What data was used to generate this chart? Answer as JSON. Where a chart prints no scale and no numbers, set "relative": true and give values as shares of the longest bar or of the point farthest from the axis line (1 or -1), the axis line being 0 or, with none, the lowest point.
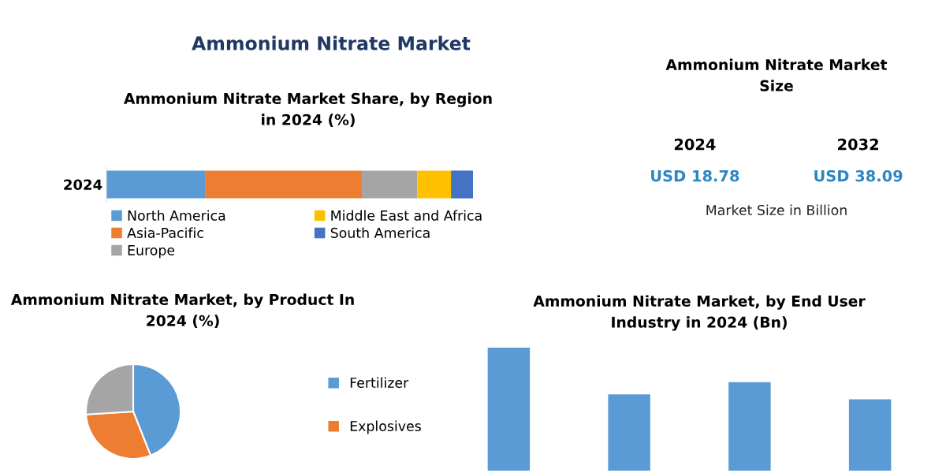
{
  "chart_data": [
    {
      "type": "bar",
      "title": "Ammonium Nitrate Market",
      "subtitle": "Ammonium Nitrate Market Share, by Region\nin 2024 (%)",
      "orientation": "horizontal",
      "stacked": true,
      "relative": true,
      "legend": "bottom",
      "categories": [
        "2024"
      ],
      "series": [
        {
          "name": "North America",
          "color": "#5b9bd5",
          "values": [
            0.269
          ]
        },
        {
          "name": "Asia-Pacific",
          "color": "#ed7d31",
          "values": [
            0.428
          ]
        },
        {
          "name": "Europe",
          "color": "#a5a5a5",
          "values": [
            0.151
          ]
        },
        {
          "name": "Middle East and Africa",
          "color": "#ffc000",
          "values": [
            0.092
          ]
        },
        {
          "name": "South America",
          "color": "#4472c4",
          "values": [
            0.06
          ]
        }
      ]
    },
    {
      "type": "pie",
      "title": "Ammonium Nitrate Market, by Product In\n2024 (%)",
      "legend": "right",
      "categories": [
        "Fertilizer",
        "Explosives",
        null
      ],
      "values": [
        44,
        30,
        26
      ],
      "colors": [
        "#5b9bd5",
        "#ed7d31",
        "#a5a5a5"
      ]
    },
    {
      "type": "bar",
      "title": "Ammonium Nitrate Market, by End User\nIndustry in 2024 (Bn)",
      "relative": true,
      "categories": [
        null,
        null,
        null,
        null
      ],
      "values": [
        1,
        0.62,
        0.72,
        0.58
      ],
      "color": "#5b9bd5"
    },
    {
      "type": "other",
      "title": "Ammonium Nitrate Market\nSize",
      "annotations": [
        "2024",
        "2032",
        "USD 18.78",
        "USD 38.09",
        "Market Size in Billion"
      ]
    }
  ]
}
